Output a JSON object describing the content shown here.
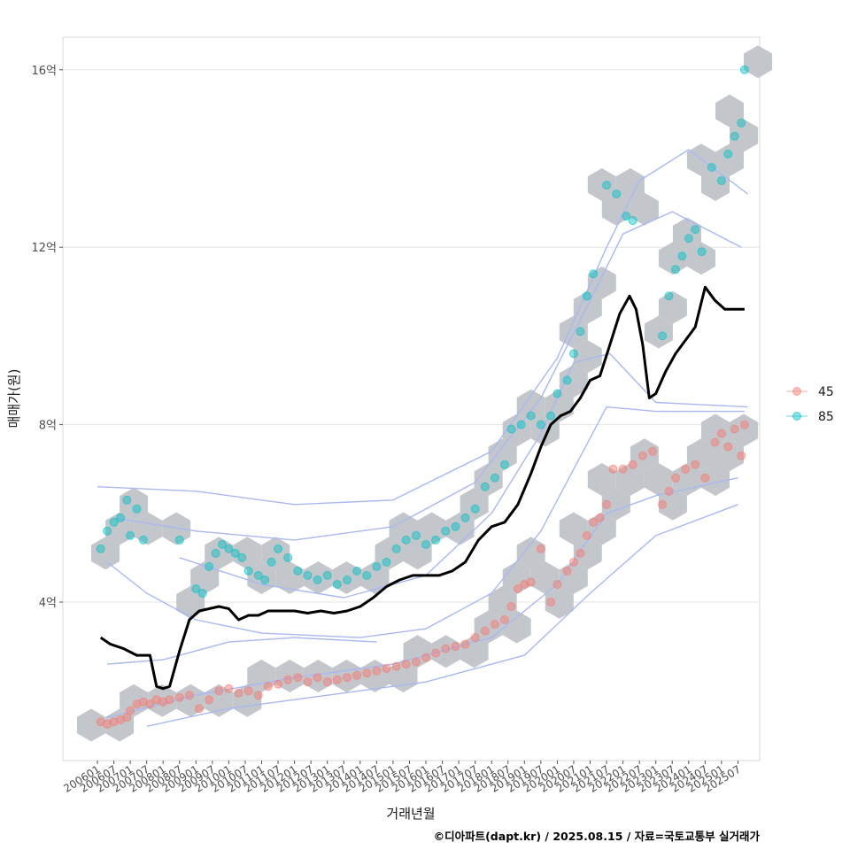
{
  "chart_data": {
    "type": "scatter",
    "xlabel": "거래년월",
    "ylabel": "매매가(원)",
    "x_ticks": [
      "200601",
      "200607",
      "200701",
      "200707",
      "200801",
      "200807",
      "200901",
      "200907",
      "201001",
      "201007",
      "201101",
      "201107",
      "201201",
      "201207",
      "201301",
      "201307",
      "201401",
      "201407",
      "201501",
      "201507",
      "201601",
      "201607",
      "201701",
      "201707",
      "201801",
      "201807",
      "201901",
      "201907",
      "202001",
      "202007",
      "202101",
      "202107",
      "202201",
      "202207",
      "202301",
      "202307",
      "202401",
      "202407",
      "202501",
      "202507"
    ],
    "y_ticks": [
      {
        "label": "4억",
        "value": 4
      },
      {
        "label": "8억",
        "value": 8
      },
      {
        "label": "12억",
        "value": 12
      },
      {
        "label": "16억",
        "value": 16
      }
    ],
    "ylim": [
      0.5,
      16.8
    ],
    "grid": true,
    "legend": {
      "position": "right",
      "entries": [
        {
          "label": "45",
          "color": "#F8766D"
        },
        {
          "label": "85",
          "color": "#00BFC4"
        }
      ]
    },
    "series": [
      {
        "name": "45",
        "color": "#F8766D",
        "points": [
          [
            2006.1,
            1.3
          ],
          [
            2006.3,
            1.25
          ],
          [
            2006.5,
            1.3
          ],
          [
            2006.7,
            1.35
          ],
          [
            2006.9,
            1.4
          ],
          [
            2007.0,
            1.55
          ],
          [
            2007.2,
            1.7
          ],
          [
            2007.4,
            1.75
          ],
          [
            2007.6,
            1.7
          ],
          [
            2007.8,
            1.8
          ],
          [
            2008.0,
            1.75
          ],
          [
            2008.2,
            1.8
          ],
          [
            2008.5,
            1.85
          ],
          [
            2008.8,
            1.9
          ],
          [
            2009.1,
            1.6
          ],
          [
            2009.4,
            1.8
          ],
          [
            2009.7,
            2.0
          ],
          [
            2010.0,
            2.05
          ],
          [
            2010.3,
            1.95
          ],
          [
            2010.6,
            2.0
          ],
          [
            2010.9,
            1.9
          ],
          [
            2011.2,
            2.1
          ],
          [
            2011.5,
            2.15
          ],
          [
            2011.8,
            2.25
          ],
          [
            2012.1,
            2.3
          ],
          [
            2012.4,
            2.2
          ],
          [
            2012.7,
            2.3
          ],
          [
            2013.0,
            2.2
          ],
          [
            2013.3,
            2.25
          ],
          [
            2013.6,
            2.3
          ],
          [
            2013.9,
            2.35
          ],
          [
            2014.2,
            2.4
          ],
          [
            2014.5,
            2.45
          ],
          [
            2014.8,
            2.5
          ],
          [
            2015.1,
            2.55
          ],
          [
            2015.4,
            2.6
          ],
          [
            2015.7,
            2.65
          ],
          [
            2016.0,
            2.75
          ],
          [
            2016.3,
            2.85
          ],
          [
            2016.6,
            2.95
          ],
          [
            2016.9,
            3.0
          ],
          [
            2017.2,
            3.05
          ],
          [
            2017.5,
            3.2
          ],
          [
            2017.8,
            3.35
          ],
          [
            2018.1,
            3.5
          ],
          [
            2018.4,
            3.6
          ],
          [
            2018.6,
            3.9
          ],
          [
            2018.8,
            4.3
          ],
          [
            2019.0,
            4.4
          ],
          [
            2019.2,
            4.45
          ],
          [
            2019.5,
            5.2
          ],
          [
            2019.8,
            4.0
          ],
          [
            2020.0,
            4.4
          ],
          [
            2020.3,
            4.7
          ],
          [
            2020.5,
            4.9
          ],
          [
            2020.7,
            5.1
          ],
          [
            2020.9,
            5.5
          ],
          [
            2021.1,
            5.8
          ],
          [
            2021.3,
            5.9
          ],
          [
            2021.5,
            6.2
          ],
          [
            2021.7,
            7.0
          ],
          [
            2022.0,
            7.0
          ],
          [
            2022.3,
            7.1
          ],
          [
            2022.6,
            7.3
          ],
          [
            2022.9,
            7.4
          ],
          [
            2023.2,
            6.2
          ],
          [
            2023.4,
            6.5
          ],
          [
            2023.6,
            6.8
          ],
          [
            2023.9,
            7.0
          ],
          [
            2024.2,
            7.1
          ],
          [
            2024.5,
            6.8
          ],
          [
            2024.8,
            7.6
          ],
          [
            2025.0,
            7.8
          ],
          [
            2025.2,
            7.5
          ],
          [
            2025.4,
            7.9
          ],
          [
            2025.6,
            7.3
          ],
          [
            2025.7,
            8.0
          ]
        ]
      },
      {
        "name": "85",
        "color": "#00BFC4",
        "points": [
          [
            2006.1,
            5.2
          ],
          [
            2006.3,
            5.6
          ],
          [
            2006.5,
            5.8
          ],
          [
            2006.7,
            5.9
          ],
          [
            2006.9,
            6.3
          ],
          [
            2007.0,
            5.5
          ],
          [
            2007.2,
            6.1
          ],
          [
            2007.4,
            5.4
          ],
          [
            2008.5,
            5.4
          ],
          [
            2009.0,
            4.3
          ],
          [
            2009.2,
            4.2
          ],
          [
            2009.4,
            4.8
          ],
          [
            2009.6,
            5.1
          ],
          [
            2009.8,
            5.3
          ],
          [
            2010.0,
            5.2
          ],
          [
            2010.2,
            5.1
          ],
          [
            2010.4,
            5.0
          ],
          [
            2010.6,
            4.7
          ],
          [
            2010.9,
            4.6
          ],
          [
            2011.1,
            4.5
          ],
          [
            2011.3,
            4.9
          ],
          [
            2011.5,
            5.2
          ],
          [
            2011.8,
            5.0
          ],
          [
            2012.1,
            4.7
          ],
          [
            2012.4,
            4.6
          ],
          [
            2012.7,
            4.5
          ],
          [
            2013.0,
            4.6
          ],
          [
            2013.3,
            4.4
          ],
          [
            2013.6,
            4.5
          ],
          [
            2013.9,
            4.7
          ],
          [
            2014.2,
            4.6
          ],
          [
            2014.5,
            4.8
          ],
          [
            2014.8,
            4.9
          ],
          [
            2015.1,
            5.2
          ],
          [
            2015.4,
            5.4
          ],
          [
            2015.7,
            5.5
          ],
          [
            2016.0,
            5.3
          ],
          [
            2016.3,
            5.4
          ],
          [
            2016.6,
            5.6
          ],
          [
            2016.9,
            5.7
          ],
          [
            2017.2,
            5.9
          ],
          [
            2017.5,
            6.1
          ],
          [
            2017.8,
            6.6
          ],
          [
            2018.1,
            6.8
          ],
          [
            2018.4,
            7.1
          ],
          [
            2018.6,
            7.9
          ],
          [
            2018.9,
            8.0
          ],
          [
            2019.2,
            8.2
          ],
          [
            2019.5,
            8.0
          ],
          [
            2019.8,
            8.2
          ],
          [
            2020.0,
            8.7
          ],
          [
            2020.3,
            9.0
          ],
          [
            2020.5,
            9.6
          ],
          [
            2020.7,
            10.1
          ],
          [
            2020.9,
            10.9
          ],
          [
            2021.1,
            11.4
          ],
          [
            2021.5,
            13.4
          ],
          [
            2021.8,
            13.2
          ],
          [
            2022.1,
            12.7
          ],
          [
            2022.3,
            12.6
          ],
          [
            2023.2,
            10.0
          ],
          [
            2023.4,
            10.9
          ],
          [
            2023.6,
            11.5
          ],
          [
            2023.8,
            11.8
          ],
          [
            2024.0,
            12.2
          ],
          [
            2024.2,
            12.4
          ],
          [
            2024.4,
            11.9
          ],
          [
            2024.7,
            13.8
          ],
          [
            2025.0,
            13.5
          ],
          [
            2025.2,
            14.1
          ],
          [
            2025.4,
            14.5
          ],
          [
            2025.6,
            14.8
          ],
          [
            2025.7,
            16.0
          ]
        ]
      },
      {
        "name": "",
        "type": "line",
        "color": "#000000",
        "points": [
          [
            2006.1,
            3.2
          ],
          [
            2006.4,
            3.05
          ],
          [
            2006.8,
            2.95
          ],
          [
            2007.2,
            2.8
          ],
          [
            2007.6,
            2.8
          ],
          [
            2007.8,
            2.1
          ],
          [
            2008.0,
            2.05
          ],
          [
            2008.2,
            2.1
          ],
          [
            2008.5,
            2.9
          ],
          [
            2008.8,
            3.6
          ],
          [
            2009.1,
            3.8
          ],
          [
            2009.4,
            3.85
          ],
          [
            2009.7,
            3.9
          ],
          [
            2010.0,
            3.85
          ],
          [
            2010.3,
            3.6
          ],
          [
            2010.6,
            3.7
          ],
          [
            2010.9,
            3.7
          ],
          [
            2011.2,
            3.8
          ],
          [
            2011.6,
            3.8
          ],
          [
            2012.0,
            3.8
          ],
          [
            2012.4,
            3.75
          ],
          [
            2012.8,
            3.8
          ],
          [
            2013.2,
            3.75
          ],
          [
            2013.6,
            3.8
          ],
          [
            2014.0,
            3.9
          ],
          [
            2014.4,
            4.1
          ],
          [
            2014.8,
            4.35
          ],
          [
            2015.2,
            4.5
          ],
          [
            2015.6,
            4.6
          ],
          [
            2016.0,
            4.6
          ],
          [
            2016.4,
            4.6
          ],
          [
            2016.8,
            4.7
          ],
          [
            2017.2,
            4.9
          ],
          [
            2017.6,
            5.4
          ],
          [
            2018.0,
            5.7
          ],
          [
            2018.4,
            5.8
          ],
          [
            2018.8,
            6.2
          ],
          [
            2019.2,
            6.9
          ],
          [
            2019.5,
            7.5
          ],
          [
            2019.8,
            8.0
          ],
          [
            2020.1,
            8.2
          ],
          [
            2020.4,
            8.3
          ],
          [
            2020.7,
            8.6
          ],
          [
            2021.0,
            9.0
          ],
          [
            2021.3,
            9.1
          ],
          [
            2021.6,
            9.8
          ],
          [
            2021.9,
            10.5
          ],
          [
            2022.2,
            10.9
          ],
          [
            2022.4,
            10.6
          ],
          [
            2022.6,
            9.8
          ],
          [
            2022.8,
            8.6
          ],
          [
            2023.0,
            8.7
          ],
          [
            2023.3,
            9.2
          ],
          [
            2023.6,
            9.6
          ],
          [
            2023.9,
            9.9
          ],
          [
            2024.2,
            10.2
          ],
          [
            2024.5,
            11.1
          ],
          [
            2024.8,
            10.8
          ],
          [
            2025.1,
            10.6
          ],
          [
            2025.4,
            10.6
          ],
          [
            2025.7,
            10.6
          ]
        ]
      }
    ]
  },
  "caption": "©디아파트(dapt.kr) / 2025.08.15 / 자료=국토교통부 실거래가"
}
